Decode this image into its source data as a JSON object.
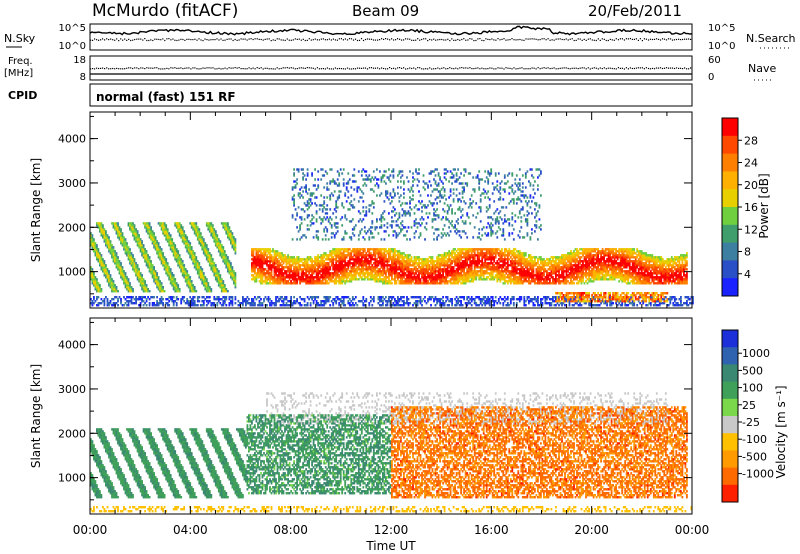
{
  "header": {
    "station": "McMurdo (fitACF)",
    "beam": "Beam 09",
    "date": "20/Feb/2011"
  },
  "noise_panel": {
    "left_label": "N.Sky",
    "right_label": "N.Search",
    "left_ticks": [
      "10^5",
      "10^0"
    ],
    "right_ticks": [
      "10^5",
      "10^0"
    ]
  },
  "freq_panel": {
    "left_label_1": "Freq.",
    "left_label_2": "[MHz]",
    "right_label": "Nave",
    "left_ticks": [
      "18",
      "8"
    ],
    "right_ticks": [
      "60",
      "0"
    ]
  },
  "cpid_panel": {
    "label": "CPID",
    "text": "normal (fast) 151 RF"
  },
  "chart_data": [
    {
      "type": "heatmap",
      "quantity": "Power",
      "ylabel": "Slant Range [km]",
      "yticks": [
        1000,
        2000,
        3000,
        4000
      ],
      "ylim": [
        180,
        4600
      ],
      "xlim": [
        0,
        24
      ],
      "colorbar": {
        "label": "Power [dB]",
        "ticks": [
          "4",
          "8",
          "12",
          "16",
          "20",
          "24",
          "28"
        ],
        "colors": [
          "#1a23ff",
          "#2a50c8",
          "#3c7fa0",
          "#3f9e6b",
          "#6fcf3f",
          "#e8d000",
          "#ffb000",
          "#ff8000",
          "#ff4800",
          "#ff0000"
        ]
      }
    },
    {
      "type": "heatmap",
      "quantity": "Velocity",
      "ylabel": "Slant Range [km]",
      "yticks": [
        1000,
        2000,
        3000,
        4000
      ],
      "ylim": [
        180,
        4600
      ],
      "xlim": [
        0,
        24
      ],
      "xticks": [
        "00:00",
        "04:00",
        "08:00",
        "12:00",
        "16:00",
        "20:00",
        "00:00"
      ],
      "xlabel": "Time UT",
      "colorbar": {
        "label": "Velocity [m s⁻¹]",
        "ticks": [
          "1000",
          "500",
          "100",
          "25",
          "-25",
          "-100",
          "-500",
          "-1000"
        ],
        "colors": [
          "#1c2fd8",
          "#2f63b0",
          "#3b8872",
          "#3fa05a",
          "#7ad84a",
          "#c8c8c8",
          "#ffc000",
          "#ff9a00",
          "#ff6a00",
          "#ff2000"
        ]
      }
    }
  ]
}
